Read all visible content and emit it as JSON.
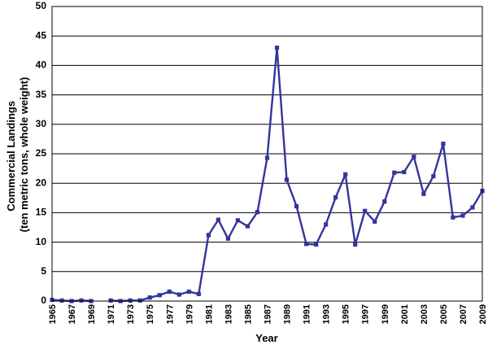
{
  "chart_data": {
    "type": "line",
    "title": "",
    "xlabel": "Year",
    "ylabel": "Commercial Landings",
    "ylabel_line2": "(ten metric tons, whole weight)",
    "xlim": [
      1965,
      2009
    ],
    "ylim": [
      0,
      50
    ],
    "yticks": [
      0,
      5,
      10,
      15,
      20,
      25,
      30,
      35,
      40,
      45,
      50
    ],
    "xtick_labels": [
      "1965",
      "1967",
      "1969",
      "1971",
      "1973",
      "1975",
      "1977",
      "1979",
      "1981",
      "1983",
      "1985",
      "1987",
      "1989",
      "1991",
      "1993",
      "1995",
      "1997",
      "1999",
      "2001",
      "2003",
      "2005",
      "2007",
      "2009"
    ],
    "grid": true,
    "legend": "none",
    "colors": {
      "series": "#33359b"
    },
    "segments": [
      [
        {
          "x": 1965,
          "y": 0.2
        },
        {
          "x": 1966,
          "y": 0.1
        },
        {
          "x": 1967,
          "y": 0.0
        },
        {
          "x": 1968,
          "y": 0.1
        },
        {
          "x": 1969,
          "y": 0.0
        }
      ],
      [
        {
          "x": 1971,
          "y": 0.1
        },
        {
          "x": 1972,
          "y": 0.0
        },
        {
          "x": 1973,
          "y": 0.1
        },
        {
          "x": 1974,
          "y": 0.1
        },
        {
          "x": 1975,
          "y": 0.6
        },
        {
          "x": 1976,
          "y": 1.0
        },
        {
          "x": 1977,
          "y": 1.6
        },
        {
          "x": 1978,
          "y": 1.1
        },
        {
          "x": 1979,
          "y": 1.6
        },
        {
          "x": 1980,
          "y": 1.2
        },
        {
          "x": 1981,
          "y": 11.2
        },
        {
          "x": 1982,
          "y": 13.8
        },
        {
          "x": 1983,
          "y": 10.6
        },
        {
          "x": 1984,
          "y": 13.7
        },
        {
          "x": 1985,
          "y": 12.7
        },
        {
          "x": 1986,
          "y": 15.1
        },
        {
          "x": 1987,
          "y": 24.3
        },
        {
          "x": 1988,
          "y": 43.0
        },
        {
          "x": 1989,
          "y": 20.6
        },
        {
          "x": 1990,
          "y": 16.1
        },
        {
          "x": 1991,
          "y": 9.7
        },
        {
          "x": 1992,
          "y": 9.6
        },
        {
          "x": 1993,
          "y": 13.0
        },
        {
          "x": 1994,
          "y": 17.6
        },
        {
          "x": 1995,
          "y": 21.5
        },
        {
          "x": 1996,
          "y": 9.6
        },
        {
          "x": 1997,
          "y": 15.3
        },
        {
          "x": 1998,
          "y": 13.5
        },
        {
          "x": 1999,
          "y": 16.9
        },
        {
          "x": 2000,
          "y": 21.8
        },
        {
          "x": 2001,
          "y": 21.9
        },
        {
          "x": 2002,
          "y": 24.5
        },
        {
          "x": 2003,
          "y": 18.2
        },
        {
          "x": 2004,
          "y": 21.2
        },
        {
          "x": 2005,
          "y": 26.7
        },
        {
          "x": 2006,
          "y": 14.2
        },
        {
          "x": 2007,
          "y": 14.5
        },
        {
          "x": 2008,
          "y": 15.9
        },
        {
          "x": 2009,
          "y": 18.7
        }
      ]
    ]
  }
}
